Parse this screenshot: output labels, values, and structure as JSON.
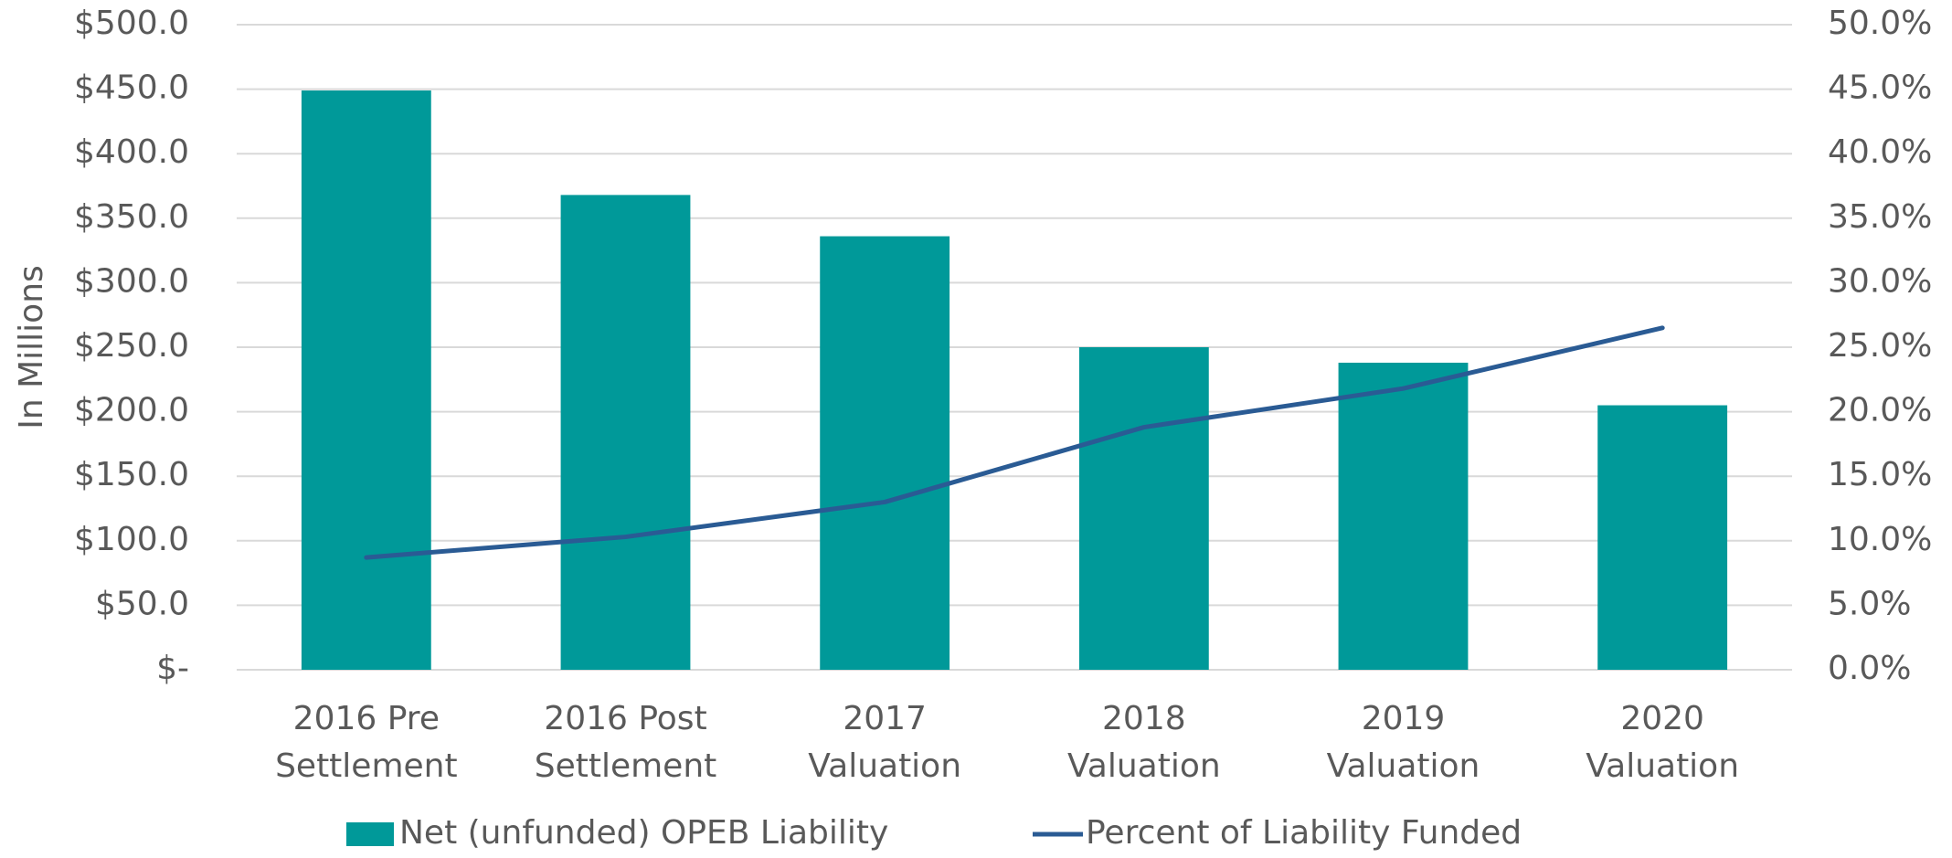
{
  "chart_data": {
    "type": "bar_line",
    "y_axis_label": "In Millions",
    "categories": [
      [
        "2016  Pre",
        "Settlement"
      ],
      [
        "2016 Post",
        "Settlement"
      ],
      [
        "2017",
        "Valuation"
      ],
      [
        "2018",
        "Valuation"
      ],
      [
        "2019",
        "Valuation"
      ],
      [
        "2020",
        "Valuation"
      ]
    ],
    "series": [
      {
        "name": "Net (unfunded) OPEB Liability",
        "type": "bar",
        "color": "#009999",
        "values": [
          449,
          368,
          336,
          250,
          238,
          205
        ]
      },
      {
        "name": "Percent of Liability Funded",
        "type": "line",
        "color": "#2a5b94",
        "axis": "y2",
        "values": [
          8.7,
          10.3,
          13.0,
          18.8,
          21.8,
          26.5
        ]
      }
    ],
    "ylim": [
      0,
      500
    ],
    "yticks": [
      {
        "value": 0,
        "label": "$-"
      },
      {
        "value": 50,
        "label": "$50.0"
      },
      {
        "value": 100,
        "label": "$100.0"
      },
      {
        "value": 150,
        "label": "$150.0"
      },
      {
        "value": 200,
        "label": "$200.0"
      },
      {
        "value": 250,
        "label": "$250.0"
      },
      {
        "value": 300,
        "label": "$300.0"
      },
      {
        "value": 350,
        "label": "$350.0"
      },
      {
        "value": 400,
        "label": "$400.0"
      },
      {
        "value": 450,
        "label": "$450.0"
      },
      {
        "value": 500,
        "label": "$500.0"
      }
    ],
    "y2lim": [
      0,
      50
    ],
    "y2ticks": [
      {
        "value": 0,
        "label": "0.0%"
      },
      {
        "value": 5,
        "label": "5.0%"
      },
      {
        "value": 10,
        "label": "10.0%"
      },
      {
        "value": 15,
        "label": "15.0%"
      },
      {
        "value": 20,
        "label": "20.0%"
      },
      {
        "value": 25,
        "label": "25.0%"
      },
      {
        "value": 30,
        "label": "30.0%"
      },
      {
        "value": 35,
        "label": "35.0%"
      },
      {
        "value": 40,
        "label": "40.0%"
      },
      {
        "value": 45,
        "label": "45.0%"
      },
      {
        "value": 50,
        "label": "50.0%"
      }
    ],
    "grid": true,
    "legend": "bottom"
  }
}
